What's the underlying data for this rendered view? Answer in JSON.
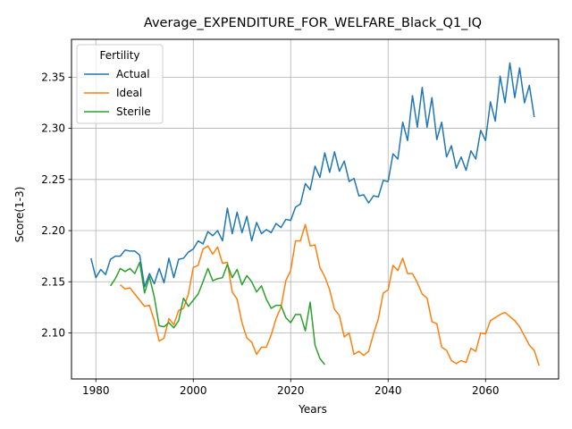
{
  "chart_data": {
    "type": "line",
    "title": "Average_EXPENDITURE_FOR_WELFARE_Black_Q1_IQ",
    "xlabel": "Years",
    "ylabel": "Score(1-3)",
    "xlim": [
      1975,
      2075
    ],
    "ylim": [
      2.055,
      2.387
    ],
    "xticks": [
      1980,
      2000,
      2020,
      2040,
      2060
    ],
    "yticks": [
      2.1,
      2.15,
      2.2,
      2.25,
      2.3,
      2.35
    ],
    "ytick_labels": [
      "2.10",
      "2.15",
      "2.20",
      "2.25",
      "2.30",
      "2.35"
    ],
    "grid": true,
    "legend": {
      "title": "Fertility",
      "placement": "top-left"
    },
    "series": [
      {
        "name": "Actual",
        "color": "#1f77b4",
        "start_year": 1979,
        "values": [
          2.173,
          2.154,
          2.162,
          2.157,
          2.172,
          2.175,
          2.175,
          2.181,
          2.18,
          2.18,
          2.176,
          2.145,
          2.158,
          2.148,
          2.163,
          2.149,
          2.173,
          2.154,
          2.172,
          2.173,
          2.179,
          2.182,
          2.19,
          2.187,
          2.199,
          2.195,
          2.2,
          2.19,
          2.222,
          2.197,
          2.218,
          2.198,
          2.214,
          2.19,
          2.208,
          2.197,
          2.201,
          2.198,
          2.207,
          2.203,
          2.211,
          2.21,
          2.223,
          2.226,
          2.246,
          2.24,
          2.263,
          2.252,
          2.276,
          2.257,
          2.277,
          2.258,
          2.268,
          2.248,
          2.251,
          2.234,
          2.235,
          2.227,
          2.234,
          2.233,
          2.249,
          2.248,
          2.275,
          2.27,
          2.306,
          2.288,
          2.332,
          2.301,
          2.34,
          2.301,
          2.33,
          2.289,
          2.306,
          2.272,
          2.283,
          2.261,
          2.272,
          2.259,
          2.278,
          2.27,
          2.298,
          2.288,
          2.326,
          2.307,
          2.351,
          2.325,
          2.364,
          2.33,
          2.359,
          2.325,
          2.342,
          2.311
        ]
      },
      {
        "name": "Ideal",
        "color": "#ff7f0e",
        "start_year": 1985,
        "values": [
          2.147,
          2.143,
          2.144,
          2.138,
          2.132,
          2.126,
          2.127,
          2.112,
          2.092,
          2.095,
          2.114,
          2.108,
          2.122,
          2.124,
          2.138,
          2.164,
          2.166,
          2.182,
          2.185,
          2.177,
          2.184,
          2.168,
          2.169,
          2.14,
          2.133,
          2.11,
          2.095,
          2.091,
          2.079,
          2.086,
          2.086,
          2.098,
          2.114,
          2.125,
          2.151,
          2.161,
          2.19,
          2.19,
          2.206,
          2.185,
          2.186,
          2.164,
          2.155,
          2.142,
          2.123,
          2.117,
          2.096,
          2.1,
          2.079,
          2.082,
          2.078,
          2.082,
          2.099,
          2.114,
          2.139,
          2.142,
          2.166,
          2.161,
          2.173,
          2.158,
          2.158,
          2.149,
          2.138,
          2.134,
          2.111,
          2.109,
          2.086,
          2.083,
          2.073,
          2.07,
          2.073,
          2.071,
          2.085,
          2.082,
          2.1,
          2.099,
          2.112,
          2.115,
          2.118,
          2.12,
          2.116,
          2.112,
          2.106,
          2.097,
          2.088,
          2.083,
          2.068
        ]
      },
      {
        "name": "Sterile",
        "color": "#2ca02c",
        "start_year": 1983,
        "values": [
          2.146,
          2.153,
          2.163,
          2.16,
          2.163,
          2.158,
          2.169,
          2.139,
          2.155,
          2.135,
          2.107,
          2.106,
          2.11,
          2.105,
          2.112,
          2.134,
          2.126,
          2.132,
          2.138,
          2.15,
          2.163,
          2.151,
          2.153,
          2.154,
          2.167,
          2.154,
          2.162,
          2.147,
          2.156,
          2.15,
          2.14,
          2.146,
          2.133,
          2.124,
          2.127,
          2.127,
          2.115,
          2.11,
          2.118,
          2.118,
          2.102,
          2.13,
          2.088,
          2.075,
          2.069
        ]
      }
    ]
  }
}
